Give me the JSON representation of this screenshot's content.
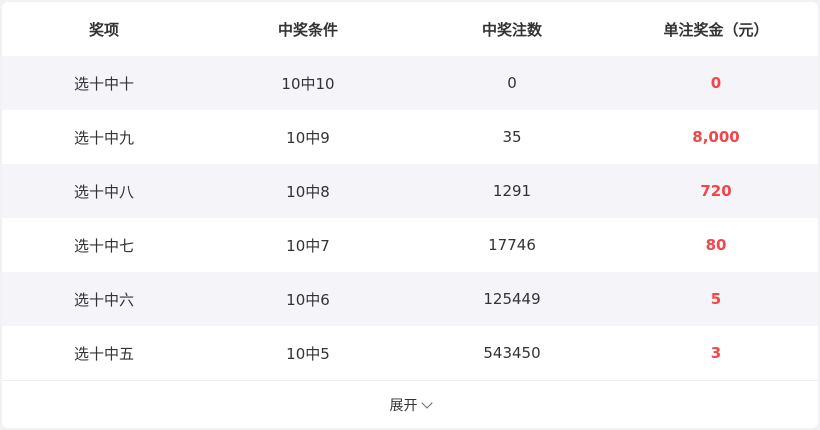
{
  "table": {
    "headers": [
      "奖项",
      "中奖条件",
      "中奖注数",
      "单注奖金（元）"
    ],
    "rows": [
      [
        "选十中十",
        "10中10",
        "0",
        "0"
      ],
      [
        "选十中九",
        "10中9",
        "35",
        "8,000"
      ],
      [
        "选十中八",
        "10中8",
        "1291",
        "720"
      ],
      [
        "选十中七",
        "10中7",
        "17746",
        "80"
      ],
      [
        "选十中六",
        "10中6",
        "125449",
        "5"
      ],
      [
        "选十中五",
        "10中5",
        "543450",
        "3"
      ]
    ]
  },
  "footer": {
    "expand_label": "展开",
    "icon": "chevron-down-icon"
  },
  "colors": {
    "prize": "#f24649",
    "alt_row": "#f5f5f9"
  }
}
